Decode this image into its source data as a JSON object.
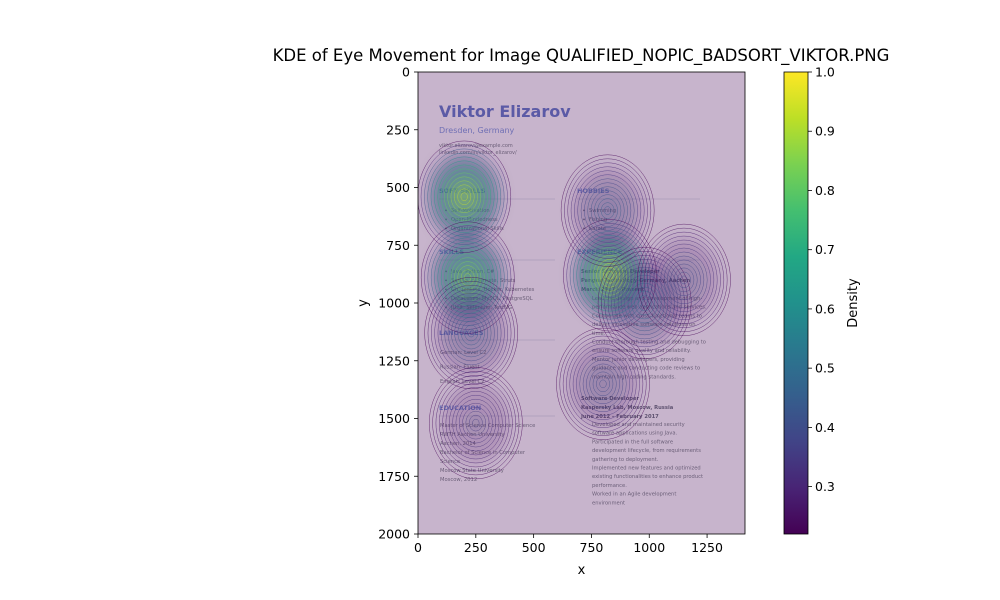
{
  "chart_data": {
    "type": "heatmap",
    "title": "KDE of Eye Movement for Image QUALIFIED_NOPIC_BADSORT_VIKTOR.PNG",
    "xlabel": "x",
    "ylabel": "y",
    "xlim": [
      0,
      1414
    ],
    "ylim": [
      2000,
      0
    ],
    "x_ticks": [
      "0",
      "250",
      "500",
      "750",
      "1000",
      "1250"
    ],
    "y_ticks": [
      "0",
      "250",
      "500",
      "750",
      "1000",
      "1250",
      "1500",
      "1750",
      "2000"
    ],
    "colorbar": {
      "label": "Density",
      "colormap": "viridis",
      "range": [
        0.22,
        1.0
      ],
      "ticks": [
        "0.3",
        "0.4",
        "0.5",
        "0.6",
        "0.7",
        "0.8",
        "0.9",
        "1.0"
      ]
    },
    "density_peaks": [
      {
        "x": 200,
        "y": 540,
        "density": 0.95
      },
      {
        "x": 215,
        "y": 890,
        "density": 0.9
      },
      {
        "x": 830,
        "y": 880,
        "density": 0.97
      },
      {
        "x": 230,
        "y": 1130,
        "density": 0.45
      },
      {
        "x": 820,
        "y": 600,
        "density": 0.45
      },
      {
        "x": 980,
        "y": 1000,
        "density": 0.5
      },
      {
        "x": 1150,
        "y": 900,
        "density": 0.4
      },
      {
        "x": 800,
        "y": 1350,
        "density": 0.4
      },
      {
        "x": 250,
        "y": 1520,
        "density": 0.35
      }
    ],
    "grid": false,
    "background_image": "CV page"
  },
  "cv": {
    "name": "Viktor Elizarov",
    "location": "Dresden, Germany",
    "contact_1": "viktor.elizarov@example.com",
    "contact_2": "linkedin.com/in/viktor_elizarov/",
    "soft_skills_heading": "SOFT SKILLS",
    "soft_skills": [
      "Self-Motivation",
      "Open-Mindedness",
      "Organizational Skills"
    ],
    "skills_heading": "SKILLS",
    "skills": [
      "Java, Python, C#",
      "Spring, Hibernate, Struts",
      "Git, Jenkins, Docker, Kubernetes",
      "Databases: MySQL, PostgreSQL",
      "JUnit, Selenium, TestNG"
    ],
    "languages_heading": "LANGUAGES",
    "languages": [
      "German: Level C2",
      "Russian: Fluent",
      "English: Level C2"
    ],
    "education_heading": "EDUCATION",
    "education": [
      "Master of Science Computer Science",
      "RWTH Aachen University",
      "Aachen, 2014",
      "Bachelor of Science in Computer",
      "Science",
      "Moscow State University",
      "Moscow, 2012"
    ],
    "hobbies_heading": "HOBBIES",
    "hobbies": [
      "Swimming",
      "Fishing",
      "Karate"
    ],
    "experience_heading": "EXPERIENCE",
    "job1": [
      "Senior Software Developer",
      "Pangea Technology Germany, Aachen",
      "March 2017 – Present"
    ],
    "job1_bullets": [
      "Lead the design and development of high-",
      "performance web applications and services.",
      "Collaborate with cross-functional teams to",
      "deliver innovative software solutions on",
      "time.",
      "Conduct thorough testing and debugging to",
      "ensure software quality and reliability.",
      "Mentor junior developers, providing",
      "guidance and conducting code reviews to",
      "maintain high coding standards."
    ],
    "job2": [
      "Software Developer",
      "Kaspersky Lab, Moscow, Russia",
      "June 2012 – February 2017"
    ],
    "job2_bullets": [
      "Developed and maintained security",
      "software applications using Java.",
      "Participated in the full software",
      "development lifecycle, from requirements",
      "gathering to deployment.",
      "Implemented new features and optimized",
      "existing functionalities to enhance product",
      "performance.",
      "Worked in an Agile development",
      "environment"
    ]
  }
}
